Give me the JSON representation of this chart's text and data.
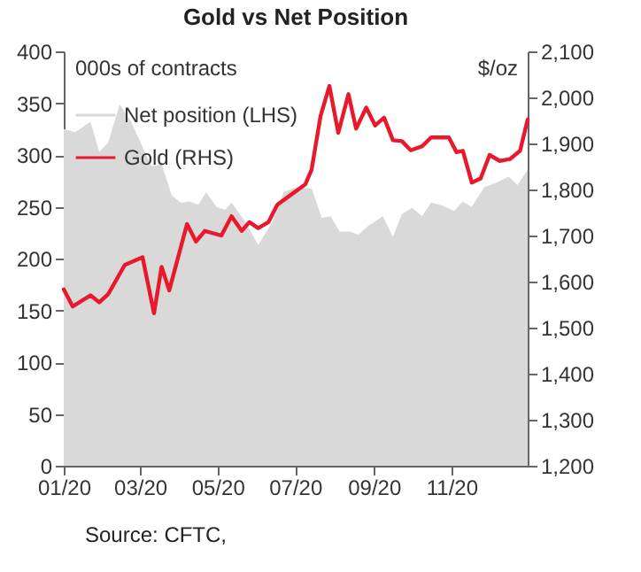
{
  "chart_data": {
    "type": "area",
    "title": "Gold vs Net Position",
    "ylabel": "000s of contracts",
    "y2label": "$/oz",
    "annotations": [
      "Source: CFTC,"
    ],
    "series": [
      {
        "name": "Net position (LHS)",
        "color": "#d9d9d9",
        "x": [
          "2020-01-01",
          "2020-01-10",
          "2020-01-22",
          "2020-01-29",
          "2020-02-05",
          "2020-02-14",
          "2020-02-23",
          "2020-03-10",
          "2020-03-18",
          "2020-03-26",
          "2020-04-02",
          "2020-04-09",
          "2020-04-16",
          "2020-04-22",
          "2020-04-30",
          "2020-05-07",
          "2020-05-12",
          "2020-05-23",
          "2020-06-02",
          "2020-06-13",
          "2020-06-22",
          "2020-06-30",
          "2020-07-14",
          "2020-07-22",
          "2020-07-29",
          "2020-08-05",
          "2020-08-13",
          "2020-08-20",
          "2020-08-27",
          "2020-09-08",
          "2020-09-16",
          "2020-09-23",
          "2020-10-01",
          "2020-10-09",
          "2020-10-16",
          "2020-10-25",
          "2020-11-03",
          "2020-11-10",
          "2020-11-17",
          "2020-11-27",
          "2020-12-06",
          "2020-12-16",
          "2020-12-23",
          "2020-12-31"
        ],
        "values": [
          325,
          322,
          332,
          303,
          312,
          349,
          332,
          289,
          291,
          261,
          254,
          255,
          252,
          264,
          250,
          247,
          254,
          235,
          213,
          235,
          264,
          268,
          268,
          239,
          241,
          226,
          226,
          223,
          231,
          241,
          221,
          243,
          249,
          241,
          254,
          251,
          246,
          255,
          250,
          269,
          273,
          279,
          271,
          286
        ]
      },
      {
        "name": "Gold (RHS)",
        "type": "line",
        "axis": "y2",
        "color": "#e8192c",
        "x": [
          "2020-01-01",
          "2020-01-08",
          "2020-01-22",
          "2020-01-29",
          "2020-02-05",
          "2020-02-18",
          "2020-03-03",
          "2020-03-12",
          "2020-03-18",
          "2020-03-24",
          "2020-04-07",
          "2020-04-14",
          "2020-04-21",
          "2020-05-04",
          "2020-05-12",
          "2020-05-20",
          "2020-05-26",
          "2020-06-02",
          "2020-06-10",
          "2020-06-17",
          "2020-06-30",
          "2020-07-09",
          "2020-07-14",
          "2020-07-21",
          "2020-07-28",
          "2020-08-04",
          "2020-08-12",
          "2020-08-18",
          "2020-08-26",
          "2020-09-02",
          "2020-09-09",
          "2020-09-16",
          "2020-09-23",
          "2020-09-30",
          "2020-10-09",
          "2020-10-16",
          "2020-10-30",
          "2020-11-05",
          "2020-11-10",
          "2020-11-17",
          "2020-11-24",
          "2020-12-01",
          "2020-12-09",
          "2020-12-17",
          "2020-12-25",
          "2020-12-31"
        ],
        "values": [
          1583,
          1546,
          1570,
          1555,
          1573,
          1636,
          1653,
          1531,
          1632,
          1581,
          1725,
          1687,
          1710,
          1700,
          1742,
          1710,
          1729,
          1716,
          1729,
          1767,
          1793,
          1811,
          1843,
          1959,
          2025,
          1923,
          2007,
          1932,
          1978,
          1939,
          1956,
          1907,
          1905,
          1885,
          1894,
          1913,
          1913,
          1881,
          1884,
          1815,
          1824,
          1875,
          1862,
          1866,
          1884,
          1952
        ]
      }
    ],
    "xlim": [
      "2020-01-01",
      "2020-12-31"
    ],
    "xticks": [
      {
        "value": "2020-01-01",
        "label": "01/20"
      },
      {
        "value": "2020-03-01",
        "label": "03/20"
      },
      {
        "value": "2020-05-01",
        "label": "05/20"
      },
      {
        "value": "2020-07-01",
        "label": "07/20"
      },
      {
        "value": "2020-09-01",
        "label": "09/20"
      },
      {
        "value": "2020-11-01",
        "label": "11/20"
      }
    ],
    "ylim": [
      0,
      400
    ],
    "yticks": [
      0,
      50,
      100,
      150,
      200,
      250,
      300,
      350,
      400
    ],
    "y2lim": [
      1200,
      2100
    ],
    "y2ticks": [
      {
        "value": 1200,
        "label": "1,200"
      },
      {
        "value": 1300,
        "label": "1,300"
      },
      {
        "value": 1400,
        "label": "1,400"
      },
      {
        "value": 1500,
        "label": "1,500"
      },
      {
        "value": 1600,
        "label": "1,600"
      },
      {
        "value": 1700,
        "label": "1,700"
      },
      {
        "value": 1800,
        "label": "1,800"
      },
      {
        "value": 1900,
        "label": "1,900"
      },
      {
        "value": 2000,
        "label": "2,000"
      },
      {
        "value": 2100,
        "label": "2,100"
      }
    ],
    "grid": false,
    "legend": "top left"
  }
}
